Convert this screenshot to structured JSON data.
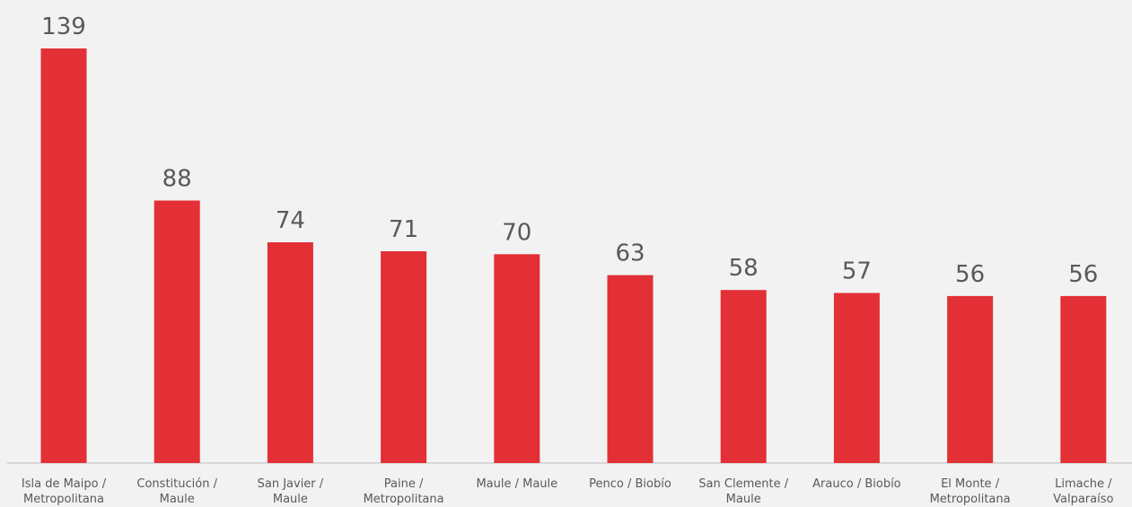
{
  "chart_data": {
    "type": "bar",
    "categories": [
      [
        "Isla de Maipo /",
        "Metropolitana"
      ],
      [
        "Constitución /",
        "Maule"
      ],
      [
        "San Javier /",
        "Maule"
      ],
      [
        "Paine /",
        "Metropolitana"
      ],
      [
        "Maule / Maule"
      ],
      [
        "Penco / Biobío"
      ],
      [
        "San Clemente /",
        "Maule"
      ],
      [
        "Arauco / Biobío"
      ],
      [
        "El Monte /",
        "Metropolitana"
      ],
      [
        "Limache /",
        "Valparaíso"
      ]
    ],
    "values": [
      139,
      88,
      74,
      71,
      70,
      63,
      58,
      57,
      56,
      56
    ],
    "data_labels": [
      "139",
      "88",
      "74",
      "71",
      "70",
      "63",
      "58",
      "57",
      "56",
      "56"
    ],
    "bar_color": "#e32f36",
    "axis_color": "#bfbfbf",
    "ylim": [
      0,
      139
    ],
    "grid": false,
    "legend": "none"
  }
}
